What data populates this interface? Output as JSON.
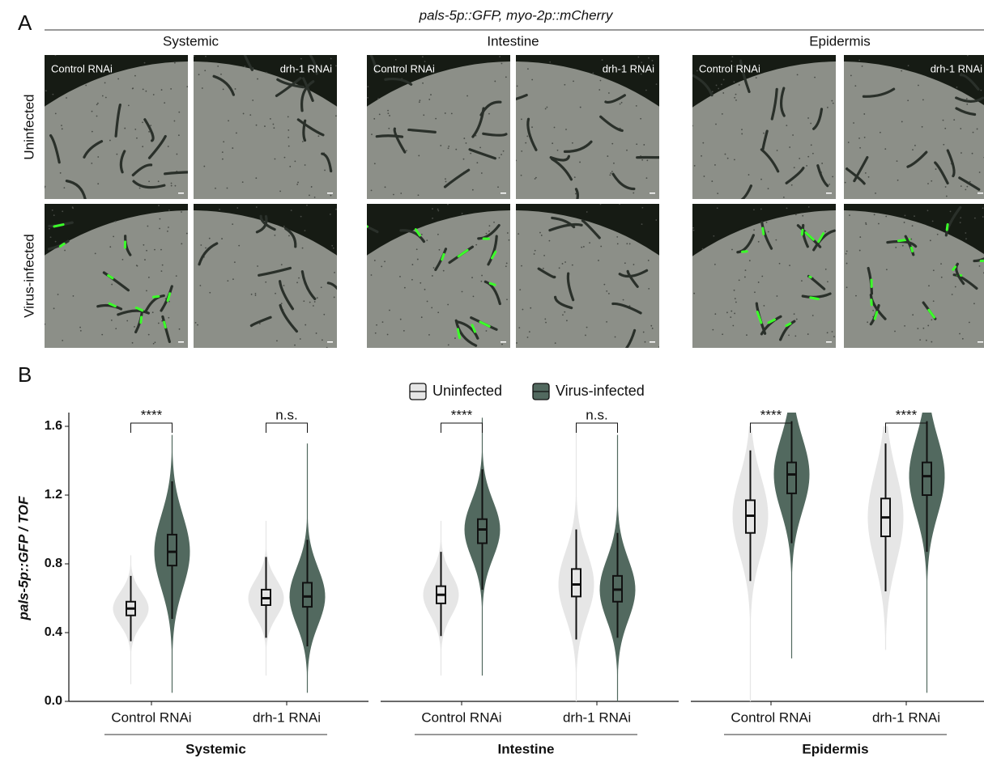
{
  "figure_a": {
    "panel_label": "A",
    "title": "pals-5p::GFP, myo-2p::mCherry",
    "columns": [
      "Systemic",
      "Intestine",
      "Epidermis"
    ],
    "rows": [
      "Uninfected",
      "Virus-infected"
    ],
    "image_labels": [
      "Control RNAi",
      "drh-1 RNAi"
    ]
  },
  "chart_data": {
    "type": "violin",
    "panel_label": "B",
    "ylabel": "pals-5p::GFP / TOF",
    "ylim": [
      0,
      1.68
    ],
    "yticks": [
      {
        "value": 0,
        "label": "0.0"
      },
      0.4,
      0.8,
      1.2,
      1.6
    ],
    "series": [
      {
        "name": "Uninfected",
        "color": "#e6e6e6"
      },
      {
        "name": "Virus-infected",
        "color": "#52695f"
      }
    ],
    "panels": [
      {
        "name": "Systemic",
        "groups": [
          {
            "name": "Control RNAi",
            "significance": "****",
            "boxes": [
              {
                "whisker_low": 0.35,
                "q1": 0.5,
                "median": 0.54,
                "q3": 0.58,
                "whisker_high": 0.73,
                "min": 0.1,
                "max": 0.85
              },
              {
                "whisker_low": 0.48,
                "q1": 0.79,
                "median": 0.87,
                "q3": 0.97,
                "whisker_high": 1.28,
                "min": 0.05,
                "max": 1.55
              }
            ]
          },
          {
            "name": "drh-1 RNAi",
            "significance": "n.s.",
            "boxes": [
              {
                "whisker_low": 0.37,
                "q1": 0.56,
                "median": 0.6,
                "q3": 0.65,
                "whisker_high": 0.84,
                "min": 0.15,
                "max": 1.05
              },
              {
                "whisker_low": 0.32,
                "q1": 0.55,
                "median": 0.61,
                "q3": 0.69,
                "whisker_high": 0.94,
                "min": 0.05,
                "max": 1.5
              }
            ]
          }
        ]
      },
      {
        "name": "Intestine",
        "groups": [
          {
            "name": "Control RNAi",
            "significance": "****",
            "boxes": [
              {
                "whisker_low": 0.38,
                "q1": 0.57,
                "median": 0.62,
                "q3": 0.67,
                "whisker_high": 0.87,
                "min": 0.15,
                "max": 1.05
              },
              {
                "whisker_low": 0.65,
                "q1": 0.92,
                "median": 1.0,
                "q3": 1.06,
                "whisker_high": 1.35,
                "min": 0.15,
                "max": 1.65
              }
            ]
          },
          {
            "name": "drh-1 RNAi",
            "significance": "n.s.",
            "boxes": [
              {
                "whisker_low": 0.36,
                "q1": 0.61,
                "median": 0.68,
                "q3": 0.77,
                "whisker_high": 1.0,
                "min": 0.0,
                "max": 1.6
              },
              {
                "whisker_low": 0.37,
                "q1": 0.58,
                "median": 0.65,
                "q3": 0.73,
                "whisker_high": 0.98,
                "min": 0.0,
                "max": 1.55
              }
            ]
          }
        ]
      },
      {
        "name": "Epidermis",
        "groups": [
          {
            "name": "Control RNAi",
            "significance": "****",
            "boxes": [
              {
                "whisker_low": 0.7,
                "q1": 0.98,
                "median": 1.08,
                "q3": 1.17,
                "whisker_high": 1.46,
                "min": 0.0,
                "max": 1.6
              },
              {
                "whisker_low": 0.92,
                "q1": 1.21,
                "median": 1.32,
                "q3": 1.39,
                "whisker_high": 1.63,
                "min": 0.25,
                "max": 1.68
              }
            ]
          },
          {
            "name": "drh-1 RNAi",
            "significance": "****",
            "boxes": [
              {
                "whisker_low": 0.64,
                "q1": 0.96,
                "median": 1.07,
                "q3": 1.18,
                "whisker_high": 1.5,
                "min": 0.3,
                "max": 1.6
              },
              {
                "whisker_low": 0.87,
                "q1": 1.2,
                "median": 1.31,
                "q3": 1.39,
                "whisker_high": 1.63,
                "min": 0.05,
                "max": 1.68
              }
            ]
          }
        ]
      }
    ]
  }
}
